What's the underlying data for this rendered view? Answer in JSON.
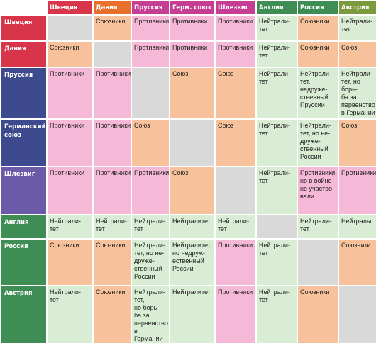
{
  "columns": [
    "Швеция",
    "Дания",
    "Пруссия",
    "Герм. союз",
    "Шлезвиг",
    "Англия",
    "Россия",
    "Австрия"
  ],
  "rows": [
    {
      "name": "Швеция",
      "cells": [
        "",
        "Союзники",
        "Противники",
        "Противники",
        "Противники",
        "Нейтралитет",
        "Союзники",
        "Нейтралитет"
      ]
    },
    {
      "name": "Дания",
      "cells": [
        "Союзники",
        "",
        "Противники",
        "Противники",
        "Противники",
        "Нейтралитет",
        "Союзники",
        "Союз"
      ]
    },
    {
      "name": "Пруссия",
      "cells": [
        "Противники",
        "Противники",
        "",
        "Союз",
        "Союз",
        "Нейтралитет",
        "Нейтралитет, недружественный Пруссии",
        "Нейтралитет, но борьба за первенство в Германии"
      ]
    },
    {
      "name": "Германский союз",
      "cells": [
        "Противники",
        "Противники",
        "Союз",
        "",
        "Союз",
        "Нейтралитет",
        "Нейтралитет, но недружественный России",
        "Союз"
      ]
    },
    {
      "name": "Шлезвиг",
      "cells": [
        "Противники",
        "Противники",
        "Противники",
        "Союз",
        "",
        "Нейтралитет",
        "Противники, но в войне не участвовали",
        "Противники"
      ]
    },
    {
      "name": "Англия",
      "cells": [
        "Нейтралитет",
        "Нейтралитет",
        "Нейтралитет",
        "Нейтралитет",
        "Нейтралитет",
        "",
        "Нейтралитет",
        "Нейтралы"
      ]
    },
    {
      "name": "Россия",
      "cells": [
        "Союзники",
        "Союзники",
        "Нейтралитет, но недружественный России",
        "Нейтралитет, но недружественный России",
        "Противники",
        "Нейтралитет",
        "",
        "Союзники"
      ]
    },
    {
      "name": "Австрия",
      "cells": [
        "Нейтралитет",
        "Союзники",
        "Нейтралитет, но борьба за первенство в Германии",
        "Нейтралитет",
        "Противники",
        "Нейтралитет",
        "Союзники",
        ""
      ]
    }
  ],
  "display": {
    "columns": [
      "Швеция",
      "Дания",
      "Пруссия",
      "Герм. союз",
      "Шлезвиг",
      "Англия",
      "Россия",
      "Австрия"
    ],
    "rows": [
      {
        "name": "Швеция",
        "cells": [
          "",
          "Союзники",
          "Противники",
          "Противники",
          "Противники",
          "Нейтрали-\nтет",
          "Союзники",
          "Нейтрали-\nтет"
        ]
      },
      {
        "name": "Дания",
        "cells": [
          "Союзники",
          "",
          "Противники",
          "Противники",
          "Противники",
          "Нейтрали-\nтет",
          "Союзники",
          "Союз"
        ]
      },
      {
        "name": "Пруссия",
        "cells": [
          "Противники",
          "Противники",
          "",
          "Союз",
          "Союз",
          "Нейтрали-\nтет",
          "Нейтрали-\nтет,\nнедруже-\nственный\nПруссии",
          "Нейтрали-\nтет, но борь-\nба за\nпервенство\nв Германии"
        ]
      },
      {
        "name": "Германский\nсоюз",
        "cells": [
          "Противники",
          "Противники",
          "Союз",
          "",
          "Союз",
          "Нейтрали-\nтет",
          "Нейтрали-\nтет, но не-\nдруже-\nственный\nРоссии",
          "Союз"
        ]
      },
      {
        "name": "Шлезвиг",
        "cells": [
          "Противники",
          "Противники",
          "Противники",
          "Союз",
          "",
          "Нейтрали-\nтет",
          "Противники,\nно в войне\nне участво-\nвали",
          "Противники"
        ]
      },
      {
        "name": "Англия",
        "cells": [
          "Нейтрали-\nтет",
          "Нейтрали-\nтет",
          "Нейтрали-\nтет",
          "Нейтралитет",
          "Нейтрали-\nтет",
          "",
          "Нейтрали-\nтет",
          "Нейтралы"
        ]
      },
      {
        "name": "Россия",
        "cells": [
          "Союзники",
          "Союзники",
          "Нейтрали-\nтет, но не-\nдруже-\nственный\nРоссии",
          "Нейтралитет,\nно недруж-\nественный\nРоссии",
          "Противники",
          "Нейтрали-\nтет",
          "",
          "Союзники"
        ]
      },
      {
        "name": "Австрия",
        "cells": [
          "Нейтрали-\nтет",
          "Союзники",
          "Нейтрали-\nтет,\nно борь-\nба за\nпервенство\nв Германии",
          "Нейтралитет",
          "Противники",
          "Нейтрали-\nтет",
          "Союзники",
          ""
        ]
      }
    ]
  },
  "colors": {
    "header_colors": [
      "#d8344a",
      "#e86f2c",
      "#c63e94",
      "#c63e94",
      "#c63e94",
      "#3d8d54",
      "#3d8d54",
      "#7a9a3c"
    ],
    "row_header_colors": [
      "#d8344a",
      "#d8344a",
      "#3e4a8e",
      "#3e4a8e",
      "#6a5aa8",
      "#3d8d54",
      "#3d8d54",
      "#3d8d54"
    ],
    "allies": "#f7c29b",
    "enemies": "#f5b8d6",
    "neutral": "#d9ecd4",
    "self": "#d9d9d9"
  }
}
